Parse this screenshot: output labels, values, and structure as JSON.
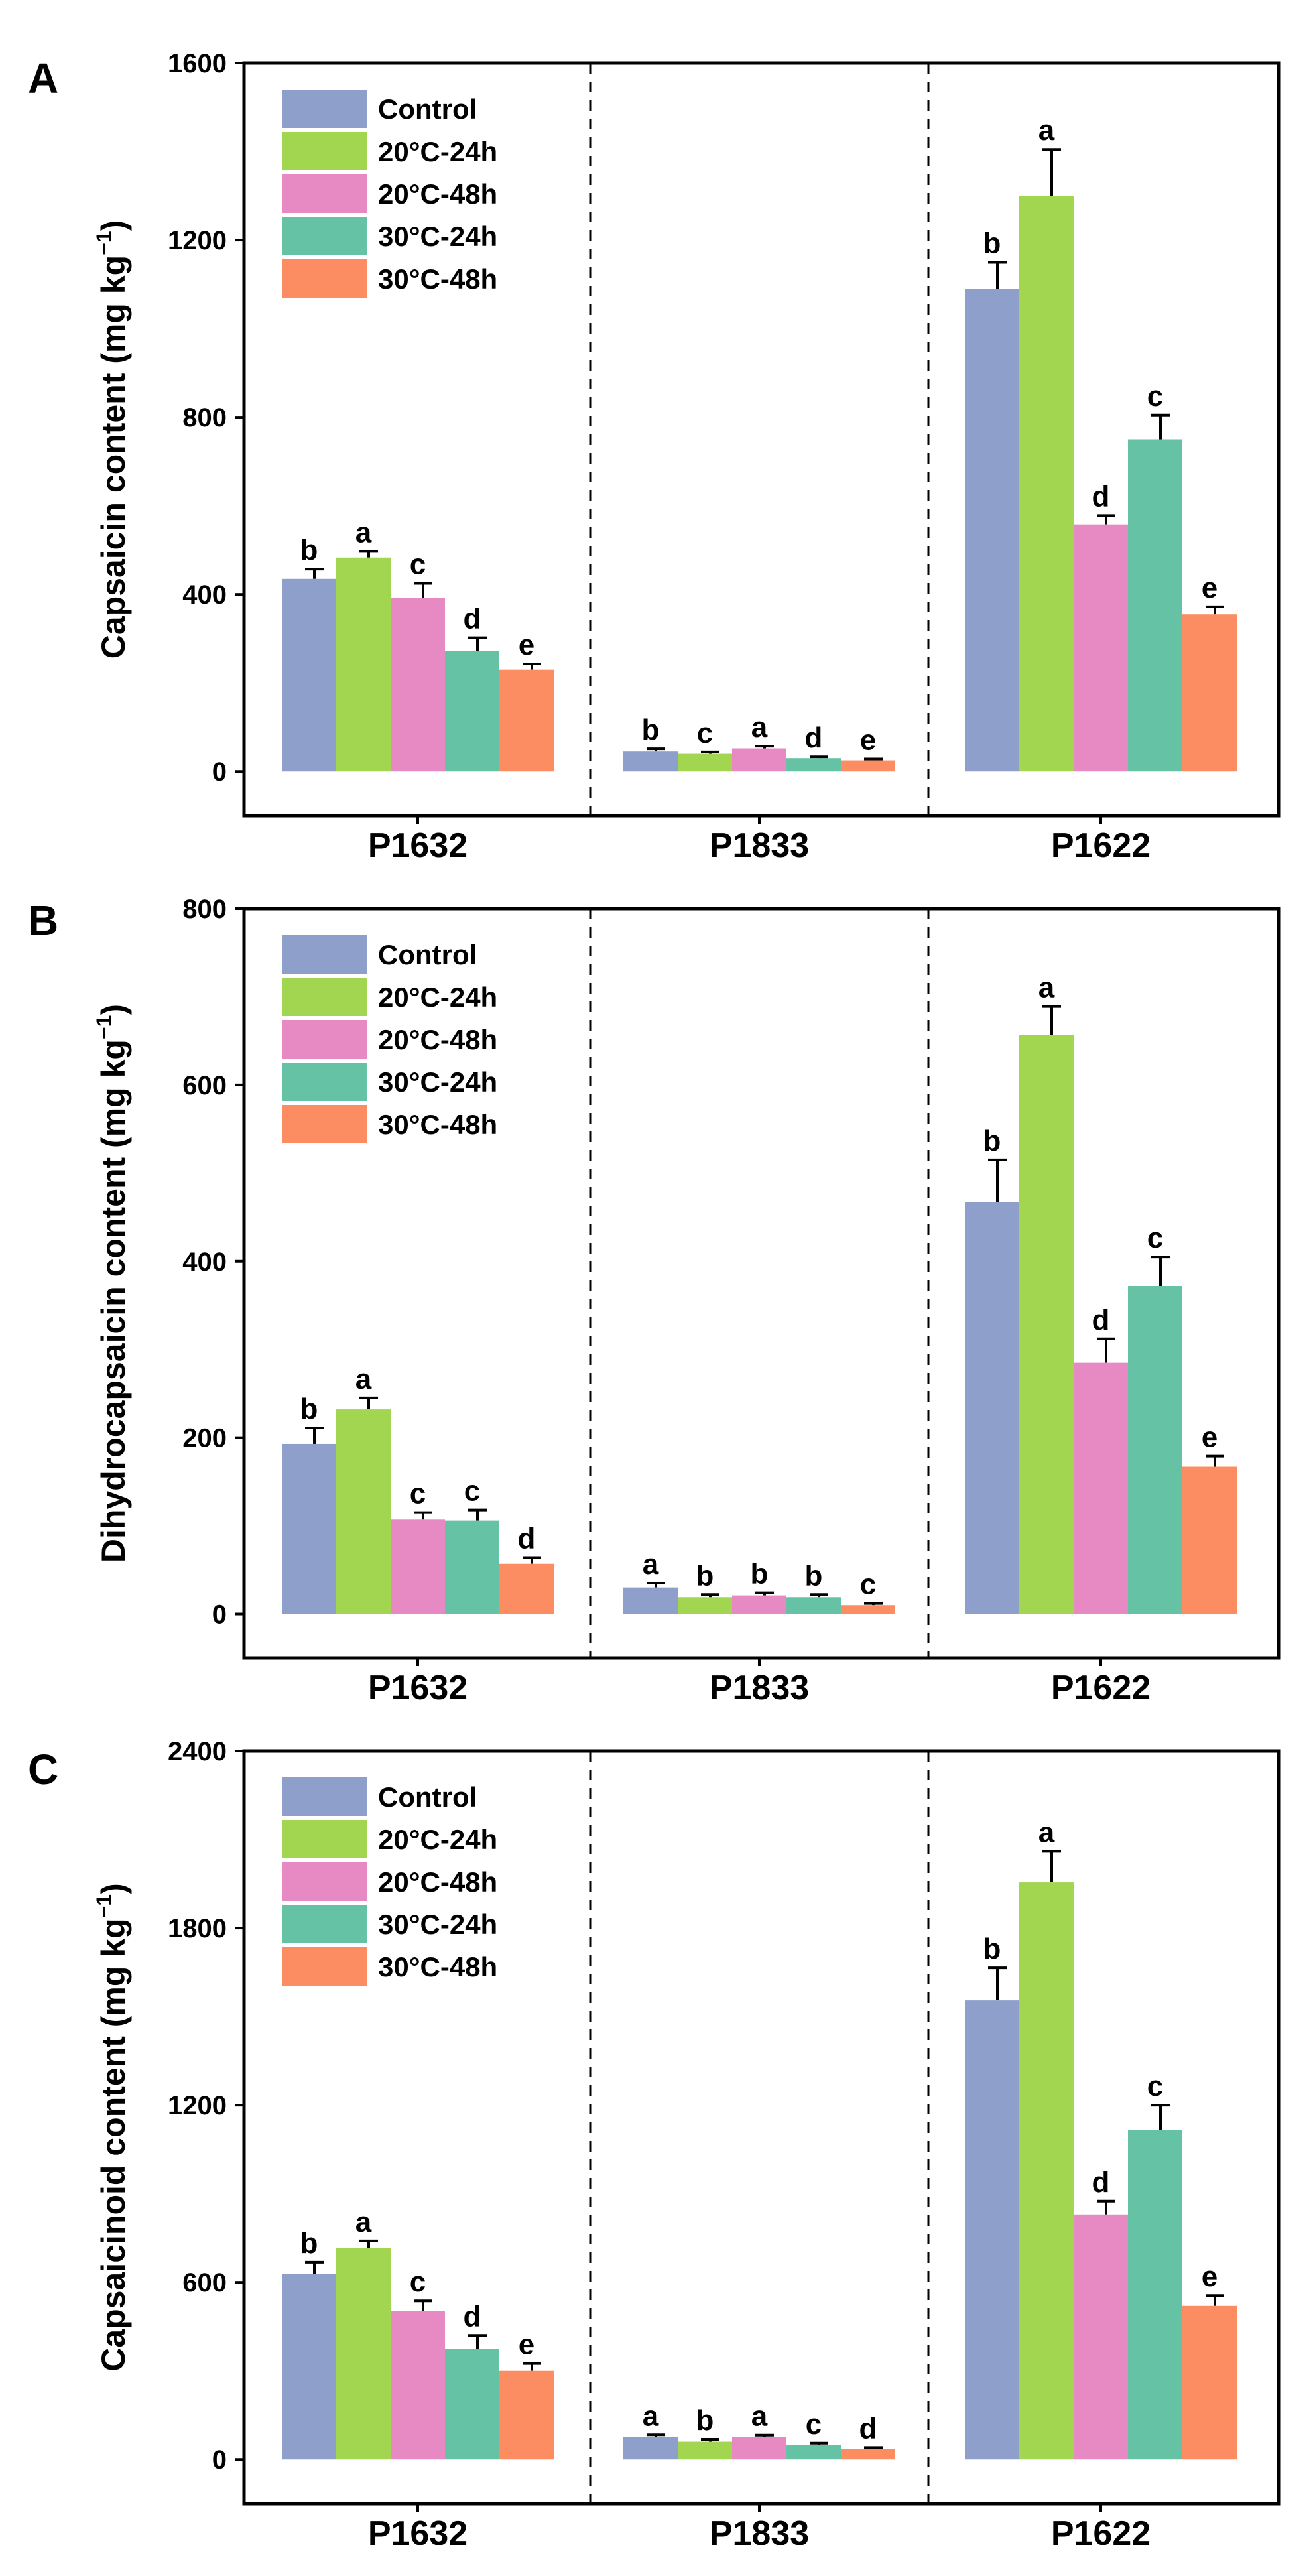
{
  "series": [
    {
      "name": "Control",
      "color": "#8F9FCB"
    },
    {
      "name": "20°C-24h",
      "color": "#A2D650"
    },
    {
      "name": "20°C-48h",
      "color": "#E78AC3"
    },
    {
      "name": "30°C-24h",
      "color": "#66C2A5"
    },
    {
      "name": "30°C-48h",
      "color": "#FC8D62"
    }
  ],
  "chart_data": [
    {
      "panel": "A",
      "type": "bar",
      "ylabel_main": "Capsaicin content (mg kg",
      "ylabel_sup": "−1",
      "ylabel_end": ")",
      "categories": [
        "P1632",
        "P1833",
        "P1622"
      ],
      "ylim": [
        -100,
        1600
      ],
      "yticks": [
        0,
        400,
        800,
        1200,
        1600
      ],
      "legend_position": "top-left",
      "series": [
        {
          "name": "Control",
          "values": [
            435,
            45,
            1090
          ],
          "errors": [
            22,
            6,
            60
          ],
          "letters": [
            "b",
            "b",
            "b"
          ]
        },
        {
          "name": "20°C-24h",
          "values": [
            483,
            40,
            1300
          ],
          "errors": [
            14,
            4,
            105
          ],
          "letters": [
            "a",
            "c",
            "a"
          ]
        },
        {
          "name": "20°C-48h",
          "values": [
            392,
            52,
            558
          ],
          "errors": [
            33,
            5,
            20
          ],
          "letters": [
            "c",
            "a",
            "d"
          ]
        },
        {
          "name": "30°C-24h",
          "values": [
            272,
            30,
            750
          ],
          "errors": [
            30,
            3,
            55
          ],
          "letters": [
            "d",
            "d",
            "c"
          ]
        },
        {
          "name": "30°C-48h",
          "values": [
            230,
            25,
            355
          ],
          "errors": [
            13,
            3,
            17
          ],
          "letters": [
            "e",
            "e",
            "e"
          ]
        }
      ]
    },
    {
      "panel": "B",
      "type": "bar",
      "ylabel_main": "Dihydrocapsaicin content  (mg kg",
      "ylabel_sup": "−1",
      "ylabel_end": ")",
      "categories": [
        "P1632",
        "P1833",
        "P1622"
      ],
      "ylim": [
        -50,
        800
      ],
      "yticks": [
        0,
        200,
        400,
        600,
        800
      ],
      "legend_position": "top-left",
      "series": [
        {
          "name": "Control",
          "values": [
            193,
            30,
            467
          ],
          "errors": [
            18,
            5,
            48
          ],
          "letters": [
            "b",
            "a",
            "b"
          ]
        },
        {
          "name": "20°C-24h",
          "values": [
            232,
            19,
            657
          ],
          "errors": [
            13,
            3,
            32
          ],
          "letters": [
            "a",
            "b",
            "a"
          ]
        },
        {
          "name": "20°C-48h",
          "values": [
            107,
            21,
            285
          ],
          "errors": [
            8,
            3,
            27
          ],
          "letters": [
            "c",
            "b",
            "d"
          ]
        },
        {
          "name": "30°C-24h",
          "values": [
            106,
            19,
            372
          ],
          "errors": [
            12,
            3,
            33
          ],
          "letters": [
            "c",
            "b",
            "c"
          ]
        },
        {
          "name": "30°C-48h",
          "values": [
            57,
            10,
            167
          ],
          "errors": [
            7,
            2,
            12
          ],
          "letters": [
            "d",
            "c",
            "e"
          ]
        }
      ]
    },
    {
      "panel": "C",
      "type": "bar",
      "ylabel_main": "Capsaicinoid content (mg kg",
      "ylabel_sup": "−1",
      "ylabel_end": ")",
      "categories": [
        "P1632",
        "P1833",
        "P1622"
      ],
      "ylim": [
        -150,
        2400
      ],
      "yticks": [
        0,
        600,
        1200,
        1800,
        2400
      ],
      "legend_position": "top-left",
      "series": [
        {
          "name": "Control",
          "values": [
            628,
            75,
            1555
          ],
          "errors": [
            40,
            8,
            110
          ],
          "letters": [
            "b",
            "a",
            "b"
          ]
        },
        {
          "name": "20°C-24h",
          "values": [
            715,
            60,
            1955
          ],
          "errors": [
            25,
            8,
            105
          ],
          "letters": [
            "a",
            "b",
            "a"
          ]
        },
        {
          "name": "20°C-48h",
          "values": [
            502,
            75,
            830
          ],
          "errors": [
            35,
            7,
            45
          ],
          "letters": [
            "c",
            "a",
            "d"
          ]
        },
        {
          "name": "30°C-24h",
          "values": [
            375,
            50,
            1115
          ],
          "errors": [
            45,
            5,
            85
          ],
          "letters": [
            "d",
            "c",
            "c"
          ]
        },
        {
          "name": "30°C-48h",
          "values": [
            300,
            35,
            520
          ],
          "errors": [
            25,
            5,
            35
          ],
          "letters": [
            "e",
            "d",
            "e"
          ]
        }
      ]
    }
  ]
}
